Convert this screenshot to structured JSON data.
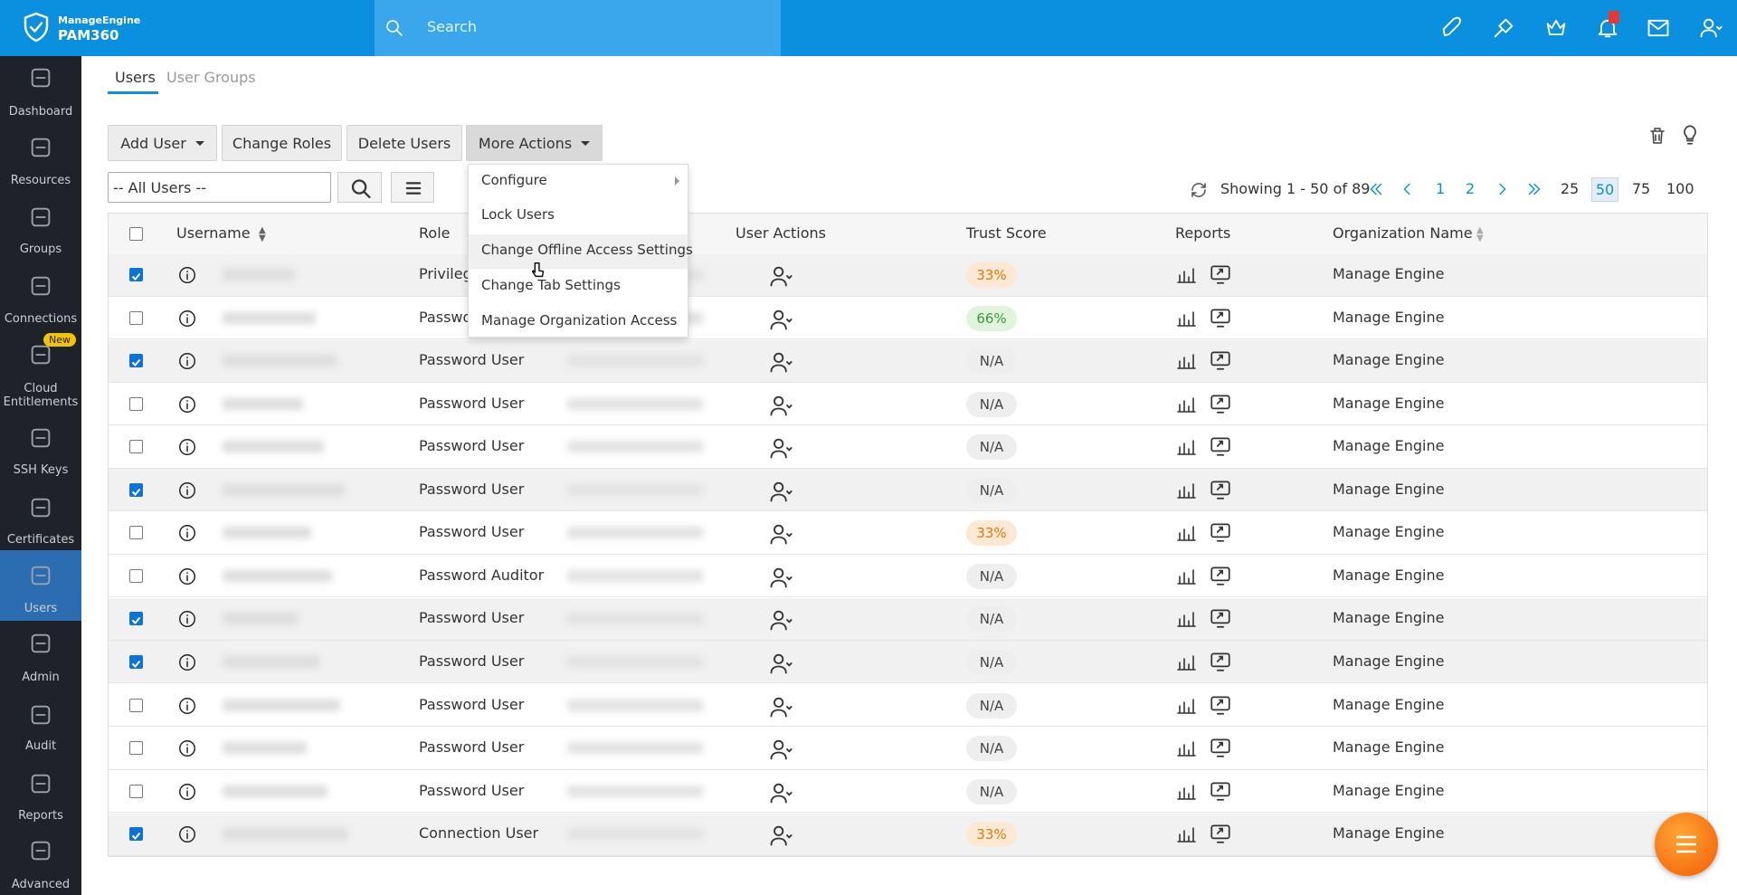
{
  "header": {
    "brand_top": "ManageEngine",
    "brand": "PAM360",
    "search": "Search"
  },
  "sidebar": [
    {
      "label": "Dashboard"
    },
    {
      "label": "Resources"
    },
    {
      "label": "Groups"
    },
    {
      "label": "Connections"
    },
    {
      "label": "Cloud Entitlements",
      "badge": "New"
    },
    {
      "label": "SSH Keys"
    },
    {
      "label": "Certificates"
    },
    {
      "label": "Users",
      "active": true
    },
    {
      "label": "Admin"
    },
    {
      "label": "Audit"
    },
    {
      "label": "Reports"
    },
    {
      "label": "Advanced"
    }
  ],
  "tabs": [
    "Users",
    "User Groups"
  ],
  "toolbar": [
    "Add User",
    "Change Roles",
    "Delete Users",
    "More Actions"
  ],
  "menu": [
    "Configure",
    "Lock Users",
    "Change Offline Access Settings",
    "Change Tab Settings",
    "Manage Organization Access"
  ],
  "filter": "-- All Users --",
  "pagination": {
    "showing": "Showing 1 - 50 of 89",
    "pages": [
      "1",
      "2"
    ],
    "sizes": [
      "25",
      "50",
      "75",
      "100"
    ],
    "current_size": "50"
  },
  "table": {
    "columns": [
      "Username",
      "Role",
      "User Actions",
      "Trust Score",
      "Reports",
      "Organization Name"
    ],
    "rows": [
      {
        "role": "Privileg",
        "trust": "33%",
        "org": "Manage Engine",
        "checked": true
      },
      {
        "role": "Passwo",
        "trust": "66%",
        "org": "Manage Engine",
        "checked": false
      },
      {
        "role": "Password User",
        "trust": "N/A",
        "org": "Manage Engine",
        "checked": true
      },
      {
        "role": "Password User",
        "trust": "N/A",
        "org": "Manage Engine",
        "checked": false
      },
      {
        "role": "Password User",
        "trust": "N/A",
        "org": "Manage Engine",
        "checked": false
      },
      {
        "role": "Password User",
        "trust": "N/A",
        "org": "Manage Engine",
        "checked": true
      },
      {
        "role": "Password User",
        "trust": "33%",
        "org": "Manage Engine",
        "checked": false
      },
      {
        "role": "Password Auditor",
        "trust": "N/A",
        "org": "Manage Engine",
        "checked": false
      },
      {
        "role": "Password User",
        "trust": "N/A",
        "org": "Manage Engine",
        "checked": true
      },
      {
        "role": "Password User",
        "trust": "N/A",
        "org": "Manage Engine",
        "checked": true
      },
      {
        "role": "Password User",
        "trust": "N/A",
        "org": "Manage Engine",
        "checked": false
      },
      {
        "role": "Password User",
        "trust": "N/A",
        "org": "Manage Engine",
        "checked": false
      },
      {
        "role": "Password User",
        "trust": "N/A",
        "org": "Manage Engine",
        "checked": false
      },
      {
        "role": "Connection User",
        "trust": "33%",
        "org": "Manage Engine",
        "checked": true
      }
    ]
  }
}
